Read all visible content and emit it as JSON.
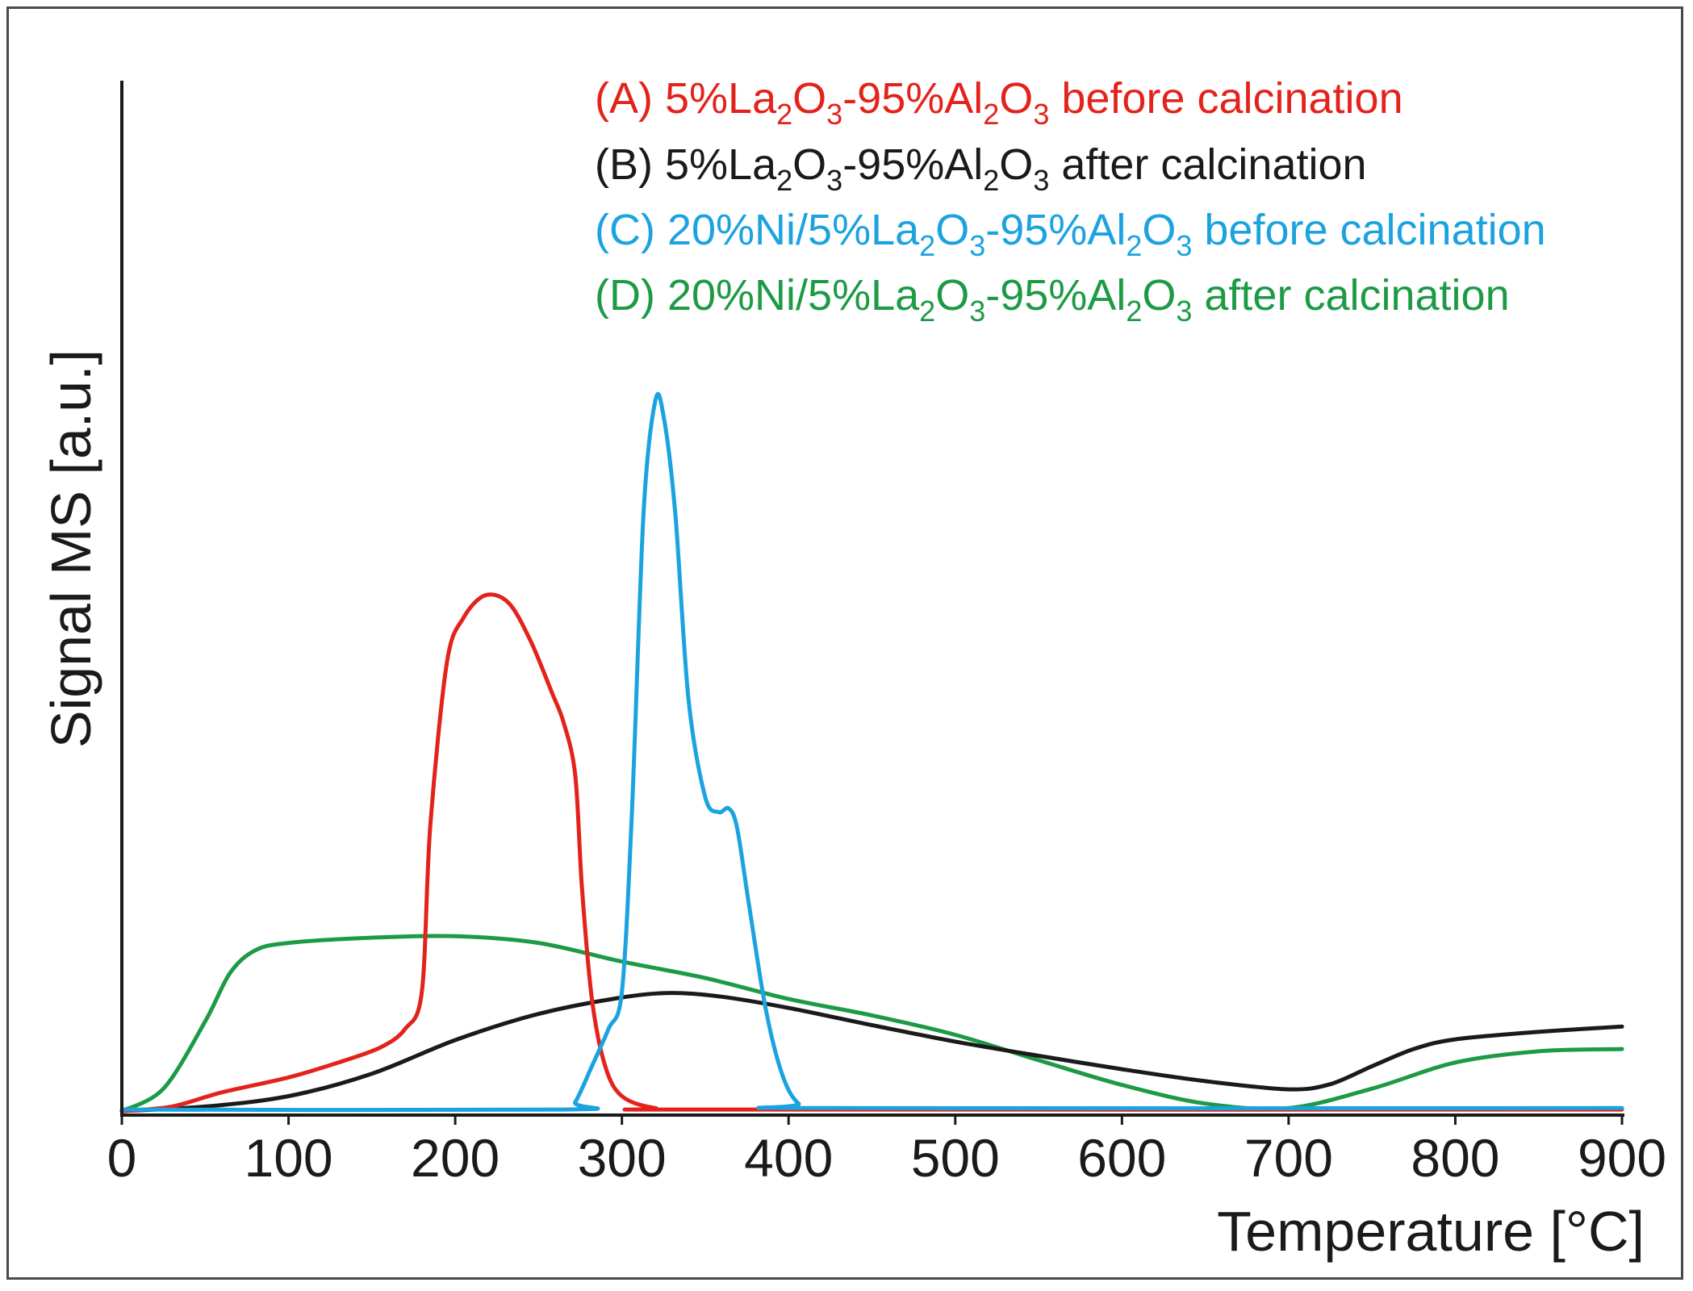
{
  "chart_data": {
    "type": "line",
    "title": "",
    "xlabel": "Temperature [°C]",
    "ylabel": "Signal MS [a.u.]",
    "xlim": [
      0,
      900
    ],
    "ylim": [
      0,
      100
    ],
    "xticks": [
      "0",
      "100",
      "200",
      "300",
      "400",
      "500",
      "600",
      "700",
      "800",
      "900"
    ],
    "yticks": [],
    "grid": false,
    "legend_position": "top-right",
    "series": [
      {
        "name": "A",
        "color": "#e3231b",
        "legend": [
          {
            "t": "(A) 5%La",
            "sub": false
          },
          {
            "t": "2",
            "sub": true
          },
          {
            "t": "O",
            "sub": false
          },
          {
            "t": "3",
            "sub": true
          },
          {
            "t": "-95%Al",
            "sub": false
          },
          {
            "t": "2",
            "sub": true
          },
          {
            "t": "O",
            "sub": false
          },
          {
            "t": "3",
            "sub": true
          },
          {
            "t": " before calcination",
            "sub": false
          }
        ],
        "points": [
          [
            0,
            0
          ],
          [
            30,
            0.6
          ],
          [
            60,
            2.5
          ],
          [
            100,
            4.5
          ],
          [
            130,
            6.5
          ],
          [
            155,
            8.5
          ],
          [
            170,
            11
          ],
          [
            180,
            16
          ],
          [
            185,
            38
          ],
          [
            195,
            60
          ],
          [
            205,
            66
          ],
          [
            218,
            69
          ],
          [
            232,
            68
          ],
          [
            245,
            63
          ],
          [
            258,
            56
          ],
          [
            265,
            52
          ],
          [
            272,
            45
          ],
          [
            276,
            30
          ],
          [
            282,
            15
          ],
          [
            290,
            6
          ],
          [
            300,
            2
          ],
          [
            320,
            0.4
          ],
          [
            350,
            0.2
          ],
          [
            900,
            0.2
          ]
        ]
      },
      {
        "name": "B",
        "color": "#1a1a1a",
        "legend": [
          {
            "t": "(B) 5%La",
            "sub": false
          },
          {
            "t": "2",
            "sub": true
          },
          {
            "t": "O",
            "sub": false
          },
          {
            "t": "3",
            "sub": true
          },
          {
            "t": "-95%Al",
            "sub": false
          },
          {
            "t": "2",
            "sub": true
          },
          {
            "t": "O",
            "sub": false
          },
          {
            "t": "3",
            "sub": true
          },
          {
            "t": " after calcination",
            "sub": false
          }
        ],
        "points": [
          [
            0,
            0
          ],
          [
            50,
            0.6
          ],
          [
            100,
            2
          ],
          [
            150,
            5
          ],
          [
            200,
            9.5
          ],
          [
            250,
            13
          ],
          [
            300,
            15.2
          ],
          [
            330,
            15.8
          ],
          [
            360,
            15.3
          ],
          [
            400,
            13.8
          ],
          [
            450,
            11.5
          ],
          [
            500,
            9.3
          ],
          [
            550,
            7.4
          ],
          [
            600,
            5.6
          ],
          [
            650,
            4
          ],
          [
            700,
            2.9
          ],
          [
            725,
            3.6
          ],
          [
            750,
            6
          ],
          [
            775,
            8.3
          ],
          [
            800,
            9.6
          ],
          [
            850,
            10.6
          ],
          [
            900,
            11.3
          ]
        ]
      },
      {
        "name": "C",
        "color": "#1ba3e0",
        "legend": [
          {
            "t": "(C) 20%Ni/5%La",
            "sub": false
          },
          {
            "t": "2",
            "sub": true
          },
          {
            "t": "O",
            "sub": false
          },
          {
            "t": "3",
            "sub": true
          },
          {
            "t": "-95%Al",
            "sub": false
          },
          {
            "t": "2",
            "sub": true
          },
          {
            "t": "O",
            "sub": false
          },
          {
            "t": "3",
            "sub": true
          },
          {
            "t": " before calcination",
            "sub": false
          }
        ],
        "points": [
          [
            0,
            0.2
          ],
          [
            265,
            0.2
          ],
          [
            272,
            1.2
          ],
          [
            282,
            6
          ],
          [
            292,
            11
          ],
          [
            300,
            16
          ],
          [
            306,
            40
          ],
          [
            313,
            80
          ],
          [
            320,
            95
          ],
          [
            325,
            93
          ],
          [
            332,
            80
          ],
          [
            340,
            55
          ],
          [
            350,
            42
          ],
          [
            358,
            40
          ],
          [
            364,
            40.5
          ],
          [
            369,
            38
          ],
          [
            376,
            28
          ],
          [
            386,
            14
          ],
          [
            396,
            5
          ],
          [
            406,
            1
          ],
          [
            420,
            0.4
          ],
          [
            900,
            0.4
          ]
        ]
      },
      {
        "name": "D",
        "color": "#1d9a45",
        "legend": [
          {
            "t": "(D) 20%Ni/5%La",
            "sub": false
          },
          {
            "t": "2",
            "sub": true
          },
          {
            "t": "O",
            "sub": false
          },
          {
            "t": "3",
            "sub": true
          },
          {
            "t": "-95%Al",
            "sub": false
          },
          {
            "t": "2",
            "sub": true
          },
          {
            "t": "O",
            "sub": false
          },
          {
            "t": "3",
            "sub": true
          },
          {
            "t": " after calcination",
            "sub": false
          }
        ],
        "points": [
          [
            0,
            0
          ],
          [
            25,
            3
          ],
          [
            50,
            12
          ],
          [
            65,
            18.5
          ],
          [
            80,
            21.5
          ],
          [
            100,
            22.5
          ],
          [
            150,
            23.2
          ],
          [
            200,
            23.4
          ],
          [
            250,
            22.5
          ],
          [
            300,
            20
          ],
          [
            350,
            17.8
          ],
          [
            400,
            15
          ],
          [
            450,
            12.8
          ],
          [
            500,
            10.2
          ],
          [
            550,
            6.8
          ],
          [
            600,
            3.5
          ],
          [
            650,
            1
          ],
          [
            700,
            0.4
          ],
          [
            750,
            3
          ],
          [
            800,
            6.5
          ],
          [
            850,
            8
          ],
          [
            900,
            8.3
          ]
        ]
      }
    ]
  }
}
